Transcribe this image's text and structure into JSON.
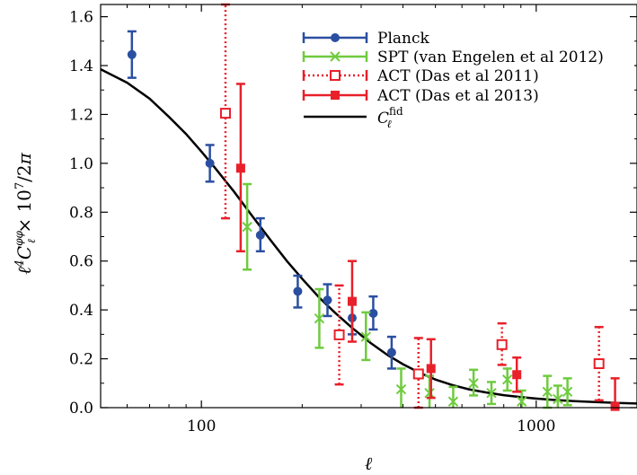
{
  "chart_data": {
    "type": "scatter",
    "title": "",
    "xlabel": "ℓ",
    "ylabel": "ℓ⁴C_ℓ^φφ × 10⁷/2π",
    "xscale": "log",
    "xlim": [
      50,
      2000
    ],
    "ylim": [
      0.0,
      1.65
    ],
    "grid": false,
    "legend_position": "top-right",
    "x_ticks": [
      {
        "value": 100,
        "label": "100"
      },
      {
        "value": 1000,
        "label": "1000"
      }
    ],
    "y_ticks": [
      {
        "value": 0.0,
        "label": "0.0"
      },
      {
        "value": 0.2,
        "label": "0.2"
      },
      {
        "value": 0.4,
        "label": "0.4"
      },
      {
        "value": 0.6,
        "label": "0.6"
      },
      {
        "value": 0.8,
        "label": "0.8"
      },
      {
        "value": 1.0,
        "label": "1.0"
      },
      {
        "value": 1.2,
        "label": "1.2"
      },
      {
        "value": 1.4,
        "label": "1.4"
      },
      {
        "value": 1.6,
        "label": "1.6"
      }
    ],
    "series": [
      {
        "name": "Planck",
        "color": "#2b4fa0",
        "marker": "filled-circle",
        "line": "solid",
        "points": [
          {
            "x": 62,
            "y": 1.445,
            "lo": 1.35,
            "hi": 1.54
          },
          {
            "x": 106,
            "y": 1.0,
            "lo": 0.925,
            "hi": 1.075
          },
          {
            "x": 150,
            "y": 0.706,
            "lo": 0.64,
            "hi": 0.775
          },
          {
            "x": 194,
            "y": 0.476,
            "lo": 0.41,
            "hi": 0.54
          },
          {
            "x": 238,
            "y": 0.44,
            "lo": 0.375,
            "hi": 0.505
          },
          {
            "x": 282,
            "y": 0.367,
            "lo": 0.3,
            "hi": 0.435
          },
          {
            "x": 326,
            "y": 0.386,
            "lo": 0.32,
            "hi": 0.455
          },
          {
            "x": 370,
            "y": 0.226,
            "lo": 0.16,
            "hi": 0.29
          }
        ]
      },
      {
        "name": "SPT (van Engelen et al 2012)",
        "color": "#6fcb3f",
        "marker": "cross",
        "line": "solid",
        "points": [
          {
            "x": 137,
            "y": 0.74,
            "lo": 0.565,
            "hi": 0.915
          },
          {
            "x": 225,
            "y": 0.365,
            "lo": 0.245,
            "hi": 0.485
          },
          {
            "x": 310,
            "y": 0.29,
            "lo": 0.195,
            "hi": 0.39
          },
          {
            "x": 395,
            "y": 0.075,
            "lo": -0.01,
            "hi": 0.16
          },
          {
            "x": 480,
            "y": 0.06,
            "lo": -0.01,
            "hi": 0.13
          },
          {
            "x": 565,
            "y": 0.025,
            "lo": -0.03,
            "hi": 0.085
          },
          {
            "x": 650,
            "y": 0.1,
            "lo": 0.05,
            "hi": 0.155
          },
          {
            "x": 735,
            "y": 0.06,
            "lo": 0.015,
            "hi": 0.105
          },
          {
            "x": 820,
            "y": 0.115,
            "lo": 0.07,
            "hi": 0.16
          },
          {
            "x": 905,
            "y": 0.025,
            "lo": -0.02,
            "hi": 0.07
          },
          {
            "x": 1080,
            "y": 0.065,
            "lo": 0.0,
            "hi": 0.13
          },
          {
            "x": 1160,
            "y": 0.035,
            "lo": -0.02,
            "hi": 0.09
          },
          {
            "x": 1240,
            "y": 0.065,
            "lo": 0.01,
            "hi": 0.12
          }
        ]
      },
      {
        "name": "ACT (Das et al 2011)",
        "color": "#e8202a",
        "marker": "open-square",
        "line": "dotted",
        "points": [
          {
            "x": 118,
            "y": 1.205,
            "lo": 0.775,
            "hi": 1.65
          },
          {
            "x": 258,
            "y": 0.298,
            "lo": 0.095,
            "hi": 0.5
          },
          {
            "x": 445,
            "y": 0.138,
            "lo": 0.0,
            "hi": 0.285
          },
          {
            "x": 790,
            "y": 0.258,
            "lo": 0.175,
            "hi": 0.345
          },
          {
            "x": 1540,
            "y": 0.18,
            "lo": 0.03,
            "hi": 0.33
          }
        ]
      },
      {
        "name": "ACT (Das et al 2013)",
        "color": "#e8202a",
        "marker": "filled-square",
        "line": "solid",
        "points": [
          {
            "x": 131,
            "y": 0.98,
            "lo": 0.64,
            "hi": 1.325
          },
          {
            "x": 282,
            "y": 0.435,
            "lo": 0.27,
            "hi": 0.6
          },
          {
            "x": 485,
            "y": 0.16,
            "lo": 0.04,
            "hi": 0.28
          },
          {
            "x": 875,
            "y": 0.135,
            "lo": 0.065,
            "hi": 0.205
          },
          {
            "x": 1720,
            "y": 0.005,
            "lo": -0.02,
            "hi": 0.12
          }
        ]
      },
      {
        "name": "C_ℓ^fid",
        "color": "#000000",
        "marker": "none",
        "line": "solid",
        "curve": [
          {
            "x": 50,
            "y": 1.385
          },
          {
            "x": 60,
            "y": 1.33
          },
          {
            "x": 70,
            "y": 1.265
          },
          {
            "x": 80,
            "y": 1.19
          },
          {
            "x": 90,
            "y": 1.12
          },
          {
            "x": 100,
            "y": 1.048
          },
          {
            "x": 110,
            "y": 0.98
          },
          {
            "x": 125,
            "y": 0.885
          },
          {
            "x": 140,
            "y": 0.795
          },
          {
            "x": 160,
            "y": 0.69
          },
          {
            "x": 180,
            "y": 0.6
          },
          {
            "x": 200,
            "y": 0.527
          },
          {
            "x": 225,
            "y": 0.45
          },
          {
            "x": 250,
            "y": 0.39
          },
          {
            "x": 280,
            "y": 0.33
          },
          {
            "x": 320,
            "y": 0.265
          },
          {
            "x": 360,
            "y": 0.215
          },
          {
            "x": 400,
            "y": 0.178
          },
          {
            "x": 450,
            "y": 0.142
          },
          {
            "x": 500,
            "y": 0.115
          },
          {
            "x": 560,
            "y": 0.093
          },
          {
            "x": 630,
            "y": 0.075
          },
          {
            "x": 710,
            "y": 0.062
          },
          {
            "x": 800,
            "y": 0.051
          },
          {
            "x": 900,
            "y": 0.043
          },
          {
            "x": 1000,
            "y": 0.037
          },
          {
            "x": 1150,
            "y": 0.031
          },
          {
            "x": 1300,
            "y": 0.027
          },
          {
            "x": 1500,
            "y": 0.023
          },
          {
            "x": 1750,
            "y": 0.019
          },
          {
            "x": 2000,
            "y": 0.017
          }
        ]
      }
    ]
  }
}
